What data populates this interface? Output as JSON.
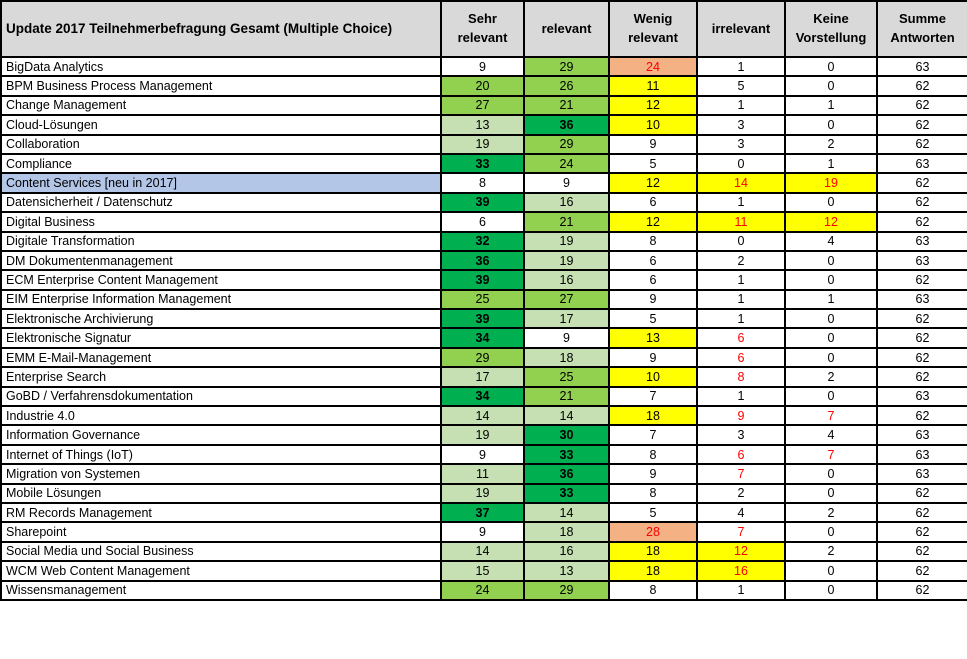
{
  "chart_data": {
    "type": "table",
    "title": "Update 2017 Teilnehmerbefragung Gesamt (Multiple Choice)",
    "columns": [
      "Sehr relevant",
      "relevant",
      "Wenig relevant",
      "irrelevant",
      "Keine Vorstellung",
      "Summe Antworten"
    ],
    "colors": {
      "header_bg": "#d9d9d9",
      "light_green": "#c6e0b4",
      "medium_green": "#92d050",
      "dark_green": "#00b050",
      "yellow": "#ffff00",
      "orange": "#f4b183",
      "highlight_blue": "#b4c6e7",
      "red_text": "#ff0000",
      "border": "#000000"
    },
    "cell_color_codes": {
      "w": "white",
      "lg": "light_green",
      "mg": "medium_green",
      "dg": "dark_green",
      "y": "yellow",
      "o": "orange"
    },
    "rows": [
      {
        "label": "BigData Analytics",
        "values": [
          9,
          29,
          24,
          1,
          0
        ],
        "bg": [
          "w",
          "mg",
          "o",
          "w",
          "w"
        ],
        "red": [
          0,
          0,
          1,
          0,
          0
        ],
        "sum": 63,
        "label_bg": "w"
      },
      {
        "label": "BPM Business Process Management",
        "values": [
          20,
          26,
          11,
          5,
          0
        ],
        "bg": [
          "mg",
          "mg",
          "y",
          "w",
          "w"
        ],
        "red": [
          0,
          0,
          0,
          0,
          0
        ],
        "sum": 62,
        "label_bg": "w"
      },
      {
        "label": "Change Management",
        "values": [
          27,
          21,
          12,
          1,
          1
        ],
        "bg": [
          "mg",
          "mg",
          "y",
          "w",
          "w"
        ],
        "red": [
          0,
          0,
          0,
          0,
          0
        ],
        "sum": 62,
        "label_bg": "w"
      },
      {
        "label": "Cloud-Lösungen",
        "values": [
          13,
          36,
          10,
          3,
          0
        ],
        "bg": [
          "lg",
          "dg",
          "y",
          "w",
          "w"
        ],
        "red": [
          0,
          0,
          0,
          0,
          0
        ],
        "sum": 62,
        "label_bg": "w"
      },
      {
        "label": "Collaboration",
        "values": [
          19,
          29,
          9,
          3,
          2
        ],
        "bg": [
          "lg",
          "mg",
          "w",
          "w",
          "w"
        ],
        "red": [
          0,
          0,
          0,
          0,
          0
        ],
        "sum": 62,
        "label_bg": "w"
      },
      {
        "label": "Compliance",
        "values": [
          33,
          24,
          5,
          0,
          1
        ],
        "bg": [
          "dg",
          "mg",
          "w",
          "w",
          "w"
        ],
        "red": [
          0,
          0,
          0,
          0,
          0
        ],
        "sum": 63,
        "label_bg": "w"
      },
      {
        "label": "Content Services [neu in 2017]",
        "values": [
          8,
          9,
          12,
          14,
          19
        ],
        "bg": [
          "w",
          "w",
          "y",
          "y",
          "y"
        ],
        "red": [
          0,
          0,
          0,
          1,
          1
        ],
        "sum": 62,
        "label_bg": "blue"
      },
      {
        "label": "Datensicherheit / Datenschutz",
        "values": [
          39,
          16,
          6,
          1,
          0
        ],
        "bg": [
          "dg",
          "lg",
          "w",
          "w",
          "w"
        ],
        "red": [
          0,
          0,
          0,
          0,
          0
        ],
        "sum": 62,
        "label_bg": "w"
      },
      {
        "label": "Digital Business",
        "values": [
          6,
          21,
          12,
          11,
          12
        ],
        "bg": [
          "w",
          "mg",
          "y",
          "y",
          "y"
        ],
        "red": [
          0,
          0,
          0,
          1,
          1
        ],
        "sum": 62,
        "label_bg": "w"
      },
      {
        "label": "Digitale Transformation",
        "values": [
          32,
          19,
          8,
          0,
          4
        ],
        "bg": [
          "dg",
          "lg",
          "w",
          "w",
          "w"
        ],
        "red": [
          0,
          0,
          0,
          0,
          0
        ],
        "sum": 63,
        "label_bg": "w"
      },
      {
        "label": "DM Dokumentenmanagement",
        "values": [
          36,
          19,
          6,
          2,
          0
        ],
        "bg": [
          "dg",
          "lg",
          "w",
          "w",
          "w"
        ],
        "red": [
          0,
          0,
          0,
          0,
          0
        ],
        "sum": 63,
        "label_bg": "w"
      },
      {
        "label": "ECM Enterprise Content Management",
        "values": [
          39,
          16,
          6,
          1,
          0
        ],
        "bg": [
          "dg",
          "lg",
          "w",
          "w",
          "w"
        ],
        "red": [
          0,
          0,
          0,
          0,
          0
        ],
        "sum": 62,
        "label_bg": "w"
      },
      {
        "label": "EIM Enterprise Information Management",
        "values": [
          25,
          27,
          9,
          1,
          1
        ],
        "bg": [
          "mg",
          "mg",
          "w",
          "w",
          "w"
        ],
        "red": [
          0,
          0,
          0,
          0,
          0
        ],
        "sum": 63,
        "label_bg": "w"
      },
      {
        "label": "Elektronische Archivierung",
        "values": [
          39,
          17,
          5,
          1,
          0
        ],
        "bg": [
          "dg",
          "lg",
          "w",
          "w",
          "w"
        ],
        "red": [
          0,
          0,
          0,
          0,
          0
        ],
        "sum": 62,
        "label_bg": "w"
      },
      {
        "label": "Elektronische Signatur",
        "values": [
          34,
          9,
          13,
          6,
          0
        ],
        "bg": [
          "dg",
          "w",
          "y",
          "w",
          "w"
        ],
        "red": [
          0,
          0,
          0,
          1,
          0
        ],
        "sum": 62,
        "label_bg": "w"
      },
      {
        "label": "EMM E-Mail-Management",
        "values": [
          29,
          18,
          9,
          6,
          0
        ],
        "bg": [
          "mg",
          "lg",
          "w",
          "w",
          "w"
        ],
        "red": [
          0,
          0,
          0,
          1,
          0
        ],
        "sum": 62,
        "label_bg": "w"
      },
      {
        "label": "Enterprise Search",
        "values": [
          17,
          25,
          10,
          8,
          2
        ],
        "bg": [
          "lg",
          "mg",
          "y",
          "w",
          "w"
        ],
        "red": [
          0,
          0,
          0,
          1,
          0
        ],
        "sum": 62,
        "label_bg": "w"
      },
      {
        "label": "GoBD / Verfahrensdokumentation",
        "values": [
          34,
          21,
          7,
          1,
          0
        ],
        "bg": [
          "dg",
          "mg",
          "w",
          "w",
          "w"
        ],
        "red": [
          0,
          0,
          0,
          0,
          0
        ],
        "sum": 63,
        "label_bg": "w"
      },
      {
        "label": "Industrie 4.0",
        "values": [
          14,
          14,
          18,
          9,
          7
        ],
        "bg": [
          "lg",
          "lg",
          "y",
          "w",
          "w"
        ],
        "red": [
          0,
          0,
          0,
          1,
          1
        ],
        "sum": 62,
        "label_bg": "w"
      },
      {
        "label": "Information Governance",
        "values": [
          19,
          30,
          7,
          3,
          4
        ],
        "bg": [
          "lg",
          "dg",
          "w",
          "w",
          "w"
        ],
        "red": [
          0,
          0,
          0,
          0,
          0
        ],
        "sum": 63,
        "label_bg": "w"
      },
      {
        "label": "Internet of Things (IoT)",
        "values": [
          9,
          33,
          8,
          6,
          7
        ],
        "bg": [
          "w",
          "dg",
          "w",
          "w",
          "w"
        ],
        "red": [
          0,
          0,
          0,
          1,
          1
        ],
        "sum": 63,
        "label_bg": "w"
      },
      {
        "label": "Migration von Systemen",
        "values": [
          11,
          36,
          9,
          7,
          0
        ],
        "bg": [
          "lg",
          "dg",
          "w",
          "w",
          "w"
        ],
        "red": [
          0,
          0,
          0,
          1,
          0
        ],
        "sum": 63,
        "label_bg": "w"
      },
      {
        "label": "Mobile Lösungen",
        "values": [
          19,
          33,
          8,
          2,
          0
        ],
        "bg": [
          "lg",
          "dg",
          "w",
          "w",
          "w"
        ],
        "red": [
          0,
          0,
          0,
          0,
          0
        ],
        "sum": 62,
        "label_bg": "w"
      },
      {
        "label": "RM Records Management",
        "values": [
          37,
          14,
          5,
          4,
          2
        ],
        "bg": [
          "dg",
          "lg",
          "w",
          "w",
          "w"
        ],
        "red": [
          0,
          0,
          0,
          0,
          0
        ],
        "sum": 62,
        "label_bg": "w"
      },
      {
        "label": "Sharepoint",
        "values": [
          9,
          18,
          28,
          7,
          0
        ],
        "bg": [
          "w",
          "lg",
          "o",
          "w",
          "w"
        ],
        "red": [
          0,
          0,
          1,
          1,
          0
        ],
        "sum": 62,
        "label_bg": "w"
      },
      {
        "label": "Social Media und Social Business",
        "values": [
          14,
          16,
          18,
          12,
          2
        ],
        "bg": [
          "lg",
          "lg",
          "y",
          "y",
          "w"
        ],
        "red": [
          0,
          0,
          0,
          1,
          0
        ],
        "sum": 62,
        "label_bg": "w"
      },
      {
        "label": "WCM Web Content Management",
        "values": [
          15,
          13,
          18,
          16,
          0
        ],
        "bg": [
          "lg",
          "lg",
          "y",
          "y",
          "w"
        ],
        "red": [
          0,
          0,
          0,
          1,
          0
        ],
        "sum": 62,
        "label_bg": "w"
      },
      {
        "label": "Wissensmanagement",
        "values": [
          24,
          29,
          8,
          1,
          0
        ],
        "bg": [
          "mg",
          "mg",
          "w",
          "w",
          "w"
        ],
        "red": [
          0,
          0,
          0,
          0,
          0
        ],
        "sum": 62,
        "label_bg": "w"
      }
    ]
  }
}
